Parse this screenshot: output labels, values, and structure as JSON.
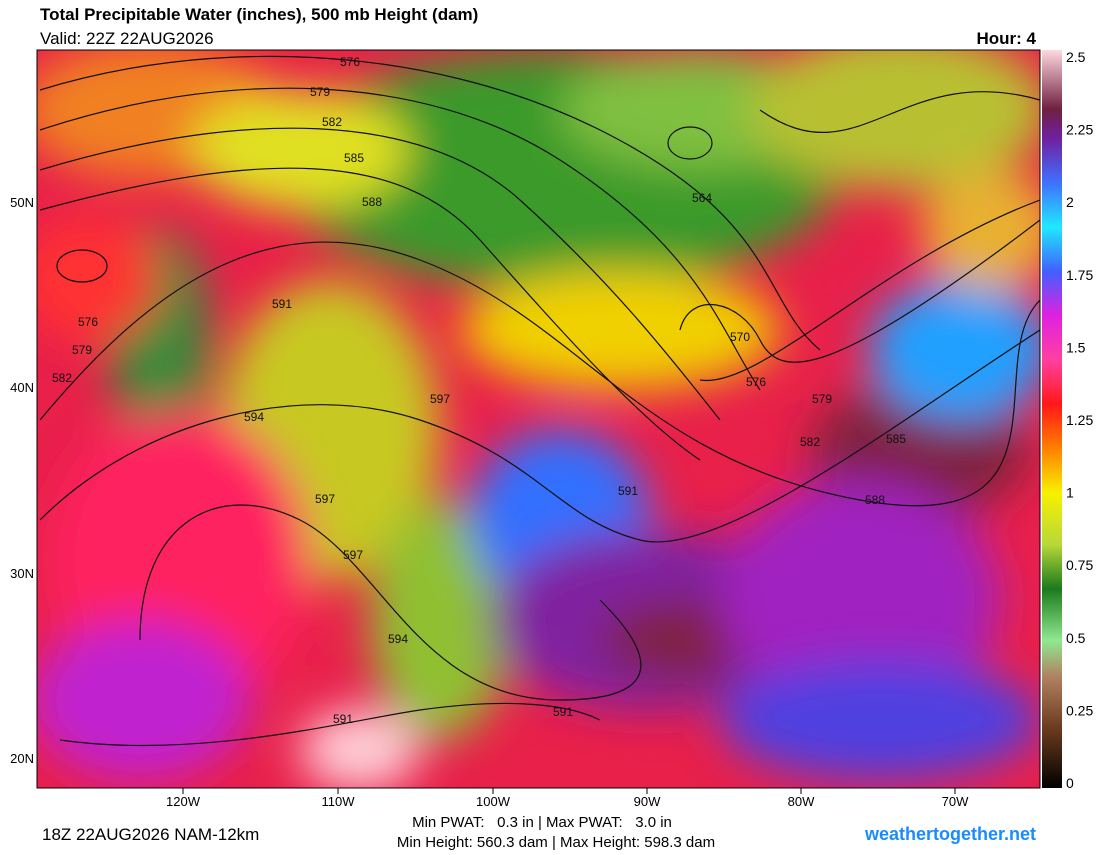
{
  "header": {
    "title": "Total Precipitable Water (inches), 500 mb Height (dam)",
    "valid": "Valid: 22Z 22AUG2026",
    "hour": "Hour: 4"
  },
  "map": {
    "lat_labels": [
      "50N",
      "40N",
      "30N",
      "20N"
    ],
    "lon_labels": [
      "120W",
      "110W",
      "100W",
      "90W",
      "80W",
      "70W"
    ],
    "contour_labels": [
      "576",
      "579",
      "582",
      "585",
      "588",
      "564",
      "591",
      "576",
      "579",
      "582",
      "570",
      "576",
      "579",
      "582",
      "585",
      "588",
      "594",
      "597",
      "597",
      "597",
      "591",
      "594",
      "591",
      "591"
    ]
  },
  "colorbar": {
    "ticks": [
      "2.5",
      "2.25",
      "2",
      "1.75",
      "1.5",
      "1.25",
      "1",
      "0.75",
      "0.5",
      "0.25",
      "0"
    ]
  },
  "footer": {
    "run": "18Z 22AUG2026 NAM-12km",
    "pwat": "Min PWAT:   0.3 in | Max PWAT:   3.0 in",
    "height": "Min Height: 560.3 dam | Max Height: 598.3 dam",
    "site": "weathertogether.net"
  }
}
